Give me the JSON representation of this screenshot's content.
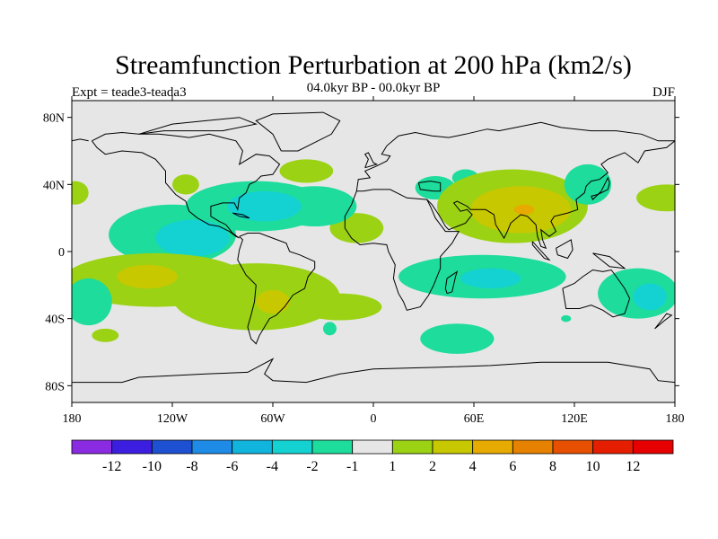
{
  "title": "Streamfunction Perturbation at 200 hPa (km2/s)",
  "left_label": "Expt = teade3-teada3",
  "center_label": "04.0kyr BP - 00.0kyr BP",
  "right_label": "DJF",
  "map": {
    "lat_ticks": [
      {
        "lat": 80,
        "label": "80N"
      },
      {
        "lat": 40,
        "label": "40N"
      },
      {
        "lat": 0,
        "label": "0"
      },
      {
        "lat": -40,
        "label": "40S"
      },
      {
        "lat": -80,
        "label": "80S"
      }
    ],
    "lon_ticks": [
      {
        "lon": -180,
        "label": "180"
      },
      {
        "lon": -120,
        "label": "120W"
      },
      {
        "lon": -60,
        "label": "60W"
      },
      {
        "lon": 0,
        "label": "0"
      },
      {
        "lon": 60,
        "label": "60E"
      },
      {
        "lon": 120,
        "label": "120E"
      },
      {
        "lon": 180,
        "label": "180"
      }
    ],
    "lat_range": [
      -90,
      90
    ],
    "lon_range": [
      -180,
      180
    ],
    "background_color": "#e6e6e6"
  },
  "colorbar": {
    "colors": [
      "#8a2be2",
      "#3c1ee0",
      "#1e50d2",
      "#1e8ce6",
      "#10b4dc",
      "#14d2d2",
      "#1edc9b",
      "#e6e6e6",
      "#9bd214",
      "#c8c800",
      "#e6aa00",
      "#e68200",
      "#e65000",
      "#e61e00",
      "#e60000"
    ],
    "labels": [
      "-12",
      "-10",
      "-8",
      "-6",
      "-4",
      "-2",
      "-1",
      "1",
      "2",
      "4",
      "6",
      "8",
      "10",
      "12"
    ]
  },
  "field": [
    {
      "level": 6,
      "lon": 37,
      "lat": 38,
      "rlon": 12,
      "rlat": 7
    },
    {
      "level": 6,
      "lon": 55,
      "lat": 44,
      "rlon": 8,
      "rlat": 5
    },
    {
      "level": 8,
      "lon": 83,
      "lat": 27,
      "rlon": 45,
      "rlat": 22
    },
    {
      "level": 9,
      "lon": 88,
      "lat": 25,
      "rlon": 30,
      "rlat": 14
    },
    {
      "level": 10,
      "lon": 90,
      "lat": 25,
      "rlon": 6,
      "rlat": 3
    },
    {
      "level": 6,
      "lon": 128,
      "lat": 40,
      "rlon": 14,
      "rlat": 12
    },
    {
      "level": 8,
      "lon": 175,
      "lat": 32,
      "rlon": 18,
      "rlat": 8
    },
    {
      "level": 8,
      "lon": -178,
      "lat": 35,
      "rlon": 8,
      "rlat": 7
    },
    {
      "level": 8,
      "lon": -112,
      "lat": 40,
      "rlon": 8,
      "rlat": 6
    },
    {
      "level": 8,
      "lon": -40,
      "lat": 48,
      "rlon": 16,
      "rlat": 7
    },
    {
      "level": 8,
      "lon": -10,
      "lat": 14,
      "rlon": 16,
      "rlat": 9
    },
    {
      "level": 6,
      "lon": -120,
      "lat": 10,
      "rlon": 38,
      "rlat": 18
    },
    {
      "level": 6,
      "lon": -70,
      "lat": 27,
      "rlon": 42,
      "rlat": 15
    },
    {
      "level": 6,
      "lon": -35,
      "lat": 27,
      "rlon": 25,
      "rlat": 12
    },
    {
      "level": 5,
      "lon": -108,
      "lat": 8,
      "rlon": 22,
      "rlat": 11
    },
    {
      "level": 5,
      "lon": -65,
      "lat": 27,
      "rlon": 22,
      "rlat": 9
    },
    {
      "level": 8,
      "lon": -130,
      "lat": -17,
      "rlon": 55,
      "rlat": 16
    },
    {
      "level": 8,
      "lon": -70,
      "lat": -27,
      "rlon": 50,
      "rlat": 20
    },
    {
      "level": 8,
      "lon": -20,
      "lat": -33,
      "rlon": 25,
      "rlat": 8
    },
    {
      "level": 9,
      "lon": -135,
      "lat": -15,
      "rlon": 18,
      "rlat": 7
    },
    {
      "level": 9,
      "lon": -60,
      "lat": -30,
      "rlon": 10,
      "rlat": 7
    },
    {
      "level": 6,
      "lon": -170,
      "lat": -30,
      "rlon": 14,
      "rlat": 14
    },
    {
      "level": 8,
      "lon": -160,
      "lat": -50,
      "rlon": 8,
      "rlat": 4
    },
    {
      "level": 6,
      "lon": -26,
      "lat": -46,
      "rlon": 4,
      "rlat": 4
    },
    {
      "level": 6,
      "lon": 65,
      "lat": -15,
      "rlon": 50,
      "rlat": 13
    },
    {
      "level": 5,
      "lon": 70,
      "lat": -16,
      "rlon": 18,
      "rlat": 6
    },
    {
      "level": 6,
      "lon": 50,
      "lat": -52,
      "rlon": 22,
      "rlat": 9
    },
    {
      "level": 6,
      "lon": 158,
      "lat": -25,
      "rlon": 24,
      "rlat": 15
    },
    {
      "level": 5,
      "lon": 165,
      "lat": -27,
      "rlon": 10,
      "rlat": 8
    },
    {
      "level": 6,
      "lon": 115,
      "lat": -40,
      "rlon": 3,
      "rlat": 2
    },
    {
      "level": 8,
      "lon": 172,
      "lat": 32,
      "rlon": 14,
      "rlat": 6
    }
  ],
  "coastlines": [
    [
      [
        -168,
        66
      ],
      [
        -160,
        70
      ],
      [
        -150,
        71
      ],
      [
        -140,
        70
      ],
      [
        -128,
        70
      ],
      [
        -118,
        69
      ],
      [
        -110,
        68
      ],
      [
        -98,
        70
      ],
      [
        -90,
        68
      ],
      [
        -82,
        66
      ],
      [
        -78,
        60
      ],
      [
        -80,
        52
      ],
      [
        -70,
        58
      ],
      [
        -62,
        57
      ],
      [
        -56,
        52
      ],
      [
        -60,
        46
      ],
      [
        -67,
        45
      ],
      [
        -70,
        42
      ],
      [
        -74,
        40
      ],
      [
        -76,
        35
      ],
      [
        -80,
        32
      ],
      [
        -81,
        25
      ],
      [
        -83,
        29
      ],
      [
        -90,
        29
      ],
      [
        -97,
        27
      ],
      [
        -97,
        21
      ],
      [
        -92,
        18
      ],
      [
        -88,
        16
      ],
      [
        -84,
        11
      ],
      [
        -80,
        8
      ],
      [
        -82,
        9
      ],
      [
        -86,
        12
      ],
      [
        -92,
        15
      ],
      [
        -98,
        16
      ],
      [
        -105,
        20
      ],
      [
        -110,
        24
      ],
      [
        -112,
        30
      ],
      [
        -115,
        32
      ],
      [
        -118,
        34
      ],
      [
        -124,
        41
      ],
      [
        -124,
        48
      ],
      [
        -130,
        55
      ],
      [
        -138,
        59
      ],
      [
        -150,
        60
      ],
      [
        -160,
        58
      ],
      [
        -165,
        62
      ],
      [
        -168,
        66
      ]
    ],
    [
      [
        -80,
        9
      ],
      [
        -75,
        11
      ],
      [
        -68,
        11
      ],
      [
        -60,
        8
      ],
      [
        -52,
        5
      ],
      [
        -50,
        0
      ],
      [
        -44,
        -2
      ],
      [
        -35,
        -6
      ],
      [
        -35,
        -10
      ],
      [
        -39,
        -15
      ],
      [
        -41,
        -22
      ],
      [
        -48,
        -26
      ],
      [
        -53,
        -33
      ],
      [
        -58,
        -38
      ],
      [
        -62,
        -40
      ],
      [
        -65,
        -45
      ],
      [
        -68,
        -50
      ],
      [
        -70,
        -55
      ],
      [
        -73,
        -52
      ],
      [
        -75,
        -45
      ],
      [
        -73,
        -38
      ],
      [
        -71,
        -30
      ],
      [
        -70,
        -20
      ],
      [
        -76,
        -14
      ],
      [
        -81,
        -5
      ],
      [
        -80,
        1
      ],
      [
        -78,
        7
      ],
      [
        -80,
        9
      ]
    ],
    [
      [
        -10,
        36
      ],
      [
        -6,
        36
      ],
      [
        0,
        37
      ],
      [
        10,
        37
      ],
      [
        20,
        32
      ],
      [
        32,
        31
      ],
      [
        34,
        27
      ],
      [
        37,
        20
      ],
      [
        43,
        12
      ],
      [
        51,
        12
      ],
      [
        47,
        5
      ],
      [
        40,
        -3
      ],
      [
        40,
        -10
      ],
      [
        36,
        -20
      ],
      [
        33,
        -26
      ],
      [
        28,
        -33
      ],
      [
        20,
        -35
      ],
      [
        18,
        -30
      ],
      [
        15,
        -25
      ],
      [
        12,
        -16
      ],
      [
        13,
        -8
      ],
      [
        9,
        0
      ],
      [
        8,
        4
      ],
      [
        0,
        5
      ],
      [
        -8,
        4
      ],
      [
        -13,
        8
      ],
      [
        -17,
        14
      ],
      [
        -17,
        21
      ],
      [
        -13,
        28
      ],
      [
        -10,
        36
      ]
    ],
    [
      [
        -10,
        36
      ],
      [
        -9,
        43
      ],
      [
        -2,
        44
      ],
      [
        -5,
        48
      ],
      [
        2,
        51
      ],
      [
        8,
        54
      ],
      [
        10,
        57
      ],
      [
        5,
        58
      ],
      [
        8,
        63
      ],
      [
        15,
        69
      ],
      [
        25,
        71
      ],
      [
        35,
        69
      ],
      [
        45,
        68
      ],
      [
        55,
        70
      ],
      [
        68,
        73
      ],
      [
        75,
        72
      ],
      [
        85,
        74
      ],
      [
        100,
        77
      ],
      [
        112,
        74
      ],
      [
        130,
        72
      ],
      [
        145,
        72
      ],
      [
        160,
        70
      ],
      [
        170,
        66
      ],
      [
        180,
        66
      ]
    ],
    [
      [
        -180,
        66
      ],
      [
        -175,
        67
      ],
      [
        -170,
        66
      ]
    ],
    [
      [
        180,
        66
      ],
      [
        175,
        62
      ],
      [
        162,
        60
      ],
      [
        158,
        53
      ],
      [
        150,
        59
      ],
      [
        140,
        55
      ],
      [
        136,
        52
      ],
      [
        140,
        47
      ],
      [
        135,
        43
      ],
      [
        130,
        42
      ],
      [
        127,
        39
      ],
      [
        126,
        35
      ],
      [
        121,
        31
      ],
      [
        122,
        25
      ],
      [
        116,
        23
      ],
      [
        108,
        21
      ],
      [
        106,
        18
      ],
      [
        109,
        12
      ],
      [
        105,
        9
      ],
      [
        100,
        13
      ],
      [
        101,
        7
      ],
      [
        103,
        2
      ],
      [
        100,
        3
      ],
      [
        98,
        9
      ],
      [
        97,
        16
      ],
      [
        92,
        21
      ],
      [
        88,
        22
      ],
      [
        82,
        17
      ],
      [
        80,
        12
      ],
      [
        78,
        8
      ],
      [
        73,
        16
      ],
      [
        72,
        22
      ],
      [
        67,
        25
      ],
      [
        58,
        25
      ],
      [
        56,
        27
      ],
      [
        50,
        30
      ],
      [
        48,
        29
      ],
      [
        52,
        24
      ],
      [
        56,
        25
      ],
      [
        59,
        22
      ],
      [
        55,
        17
      ],
      [
        45,
        13
      ],
      [
        43,
        15
      ],
      [
        39,
        22
      ],
      [
        35,
        28
      ],
      [
        32,
        31
      ]
    ],
    [
      [
        27,
        41
      ],
      [
        34,
        42
      ],
      [
        40,
        41
      ],
      [
        40,
        36
      ],
      [
        36,
        36
      ],
      [
        28,
        37
      ],
      [
        27,
        41
      ]
    ],
    [
      [
        113,
        -22
      ],
      [
        115,
        -34
      ],
      [
        123,
        -34
      ],
      [
        130,
        -32
      ],
      [
        137,
        -35
      ],
      [
        143,
        -39
      ],
      [
        150,
        -37
      ],
      [
        153,
        -28
      ],
      [
        150,
        -22
      ],
      [
        145,
        -15
      ],
      [
        142,
        -11
      ],
      [
        137,
        -12
      ],
      [
        131,
        -11
      ],
      [
        125,
        -15
      ],
      [
        120,
        -19
      ],
      [
        113,
        -22
      ]
    ],
    [
      [
        -5,
        50
      ],
      [
        -3,
        55
      ],
      [
        -5,
        58
      ],
      [
        -3,
        59
      ],
      [
        0,
        53
      ],
      [
        2,
        52
      ],
      [
        -5,
        50
      ]
    ],
    [
      [
        44,
        -25
      ],
      [
        47,
        -24
      ],
      [
        49,
        -15
      ],
      [
        50,
        -12
      ],
      [
        44,
        -16
      ],
      [
        43,
        -22
      ],
      [
        44,
        -25
      ]
    ],
    [
      [
        -55,
        60
      ],
      [
        -45,
        60
      ],
      [
        -25,
        70
      ],
      [
        -20,
        78
      ],
      [
        -30,
        83
      ],
      [
        -60,
        82
      ],
      [
        -70,
        78
      ],
      [
        -60,
        70
      ],
      [
        -55,
        60
      ]
    ],
    [
      [
        130,
        33
      ],
      [
        134,
        34
      ],
      [
        140,
        37
      ],
      [
        141,
        41
      ],
      [
        140,
        44
      ],
      [
        136,
        36
      ],
      [
        131,
        31
      ],
      [
        130,
        33
      ]
    ],
    [
      [
        95,
        6
      ],
      [
        105,
        -5
      ],
      [
        102,
        -4
      ],
      [
        95,
        4
      ],
      [
        95,
        6
      ]
    ],
    [
      [
        109,
        2
      ],
      [
        118,
        7
      ],
      [
        119,
        1
      ],
      [
        116,
        -4
      ],
      [
        110,
        -2
      ],
      [
        109,
        2
      ]
    ],
    [
      [
        131,
        -1
      ],
      [
        141,
        -3
      ],
      [
        150,
        -10
      ],
      [
        141,
        -9
      ],
      [
        131,
        -1
      ]
    ],
    [
      [
        172,
        -41
      ],
      [
        175,
        -37
      ],
      [
        178,
        -38
      ],
      [
        174,
        -41
      ],
      [
        168,
        -46
      ],
      [
        172,
        -41
      ]
    ],
    [
      [
        -180,
        -78
      ],
      [
        -150,
        -78
      ],
      [
        -140,
        -75
      ],
      [
        -100,
        -73
      ],
      [
        -75,
        -72
      ],
      [
        -60,
        -64
      ],
      [
        -65,
        -73
      ],
      [
        -60,
        -77
      ],
      [
        -40,
        -78
      ],
      [
        -20,
        -73
      ],
      [
        0,
        -70
      ],
      [
        40,
        -69
      ],
      [
        70,
        -68
      ],
      [
        100,
        -66
      ],
      [
        140,
        -66
      ],
      [
        165,
        -70
      ],
      [
        170,
        -77
      ],
      [
        180,
        -78
      ]
    ],
    [
      [
        -84,
        23
      ],
      [
        -78,
        22
      ],
      [
        -74,
        20
      ],
      [
        -80,
        21
      ],
      [
        -84,
        23
      ]
    ],
    [
      [
        -140,
        70
      ],
      [
        -120,
        76
      ],
      [
        -100,
        78
      ],
      [
        -80,
        80
      ],
      [
        -70,
        76
      ],
      [
        -90,
        72
      ],
      [
        -110,
        72
      ],
      [
        -125,
        72
      ],
      [
        -140,
        70
      ]
    ]
  ]
}
